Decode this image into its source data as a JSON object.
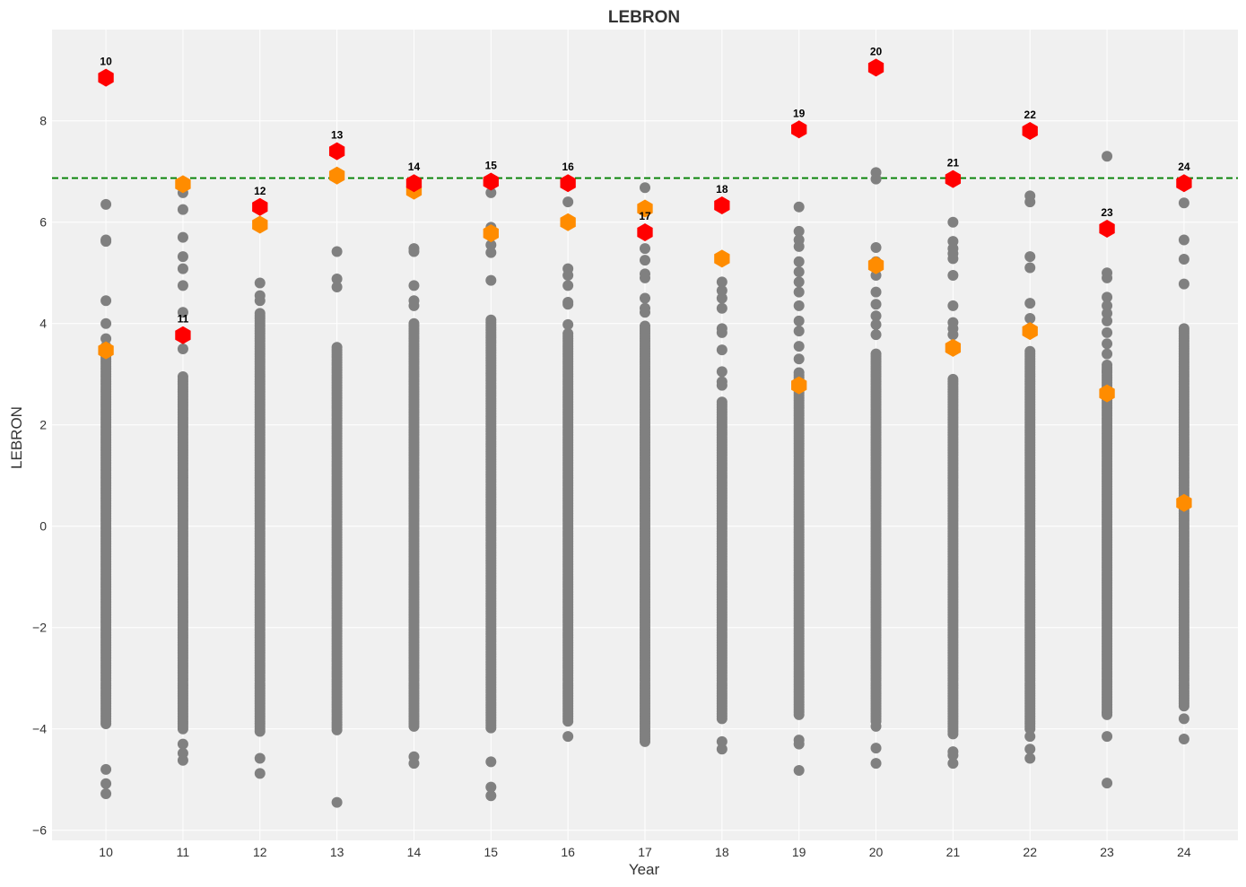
{
  "chart_data": {
    "type": "scatter",
    "title": "LEBRON",
    "xlabel": "Year",
    "ylabel": "LEBRON",
    "xlim": [
      9.3,
      24.7
    ],
    "ylim": [
      -6.2,
      9.8
    ],
    "x_ticks": [
      10,
      11,
      12,
      13,
      14,
      15,
      16,
      17,
      18,
      19,
      20,
      21,
      22,
      23,
      24
    ],
    "y_ticks": [
      -6,
      -4,
      -2,
      0,
      2,
      4,
      6,
      8
    ],
    "grid": true,
    "reference_line": {
      "y": 6.87,
      "color": "#008000",
      "style": "dashed"
    },
    "colors": {
      "background": "#f0f0f0",
      "grid": "#ffffff",
      "others": "#808080",
      "second": "#ff8c00",
      "leader": "#ff0000",
      "reference": "#008000"
    },
    "series": [
      {
        "marker": "circle",
        "color": "#808080",
        "points_by_year": [
          {
            "year": 10,
            "outliers": [
              6.35,
              5.65,
              5.62,
              4.45,
              4.0,
              3.7,
              3.55,
              -4.8,
              -5.08,
              -5.28
            ],
            "range": [
              -3.9,
              3.4
            ]
          },
          {
            "year": 11,
            "outliers": [
              6.58,
              6.25,
              5.7,
              5.32,
              5.08,
              4.75,
              4.22,
              3.5,
              -4.3,
              -4.48,
              -4.62
            ],
            "range": [
              -4.0,
              2.95
            ]
          },
          {
            "year": 12,
            "outliers": [
              4.8,
              4.55,
              4.45,
              -4.58,
              -4.88
            ],
            "range": [
              -4.05,
              4.22
            ]
          },
          {
            "year": 13,
            "outliers": [
              5.42,
              4.88,
              4.72,
              -5.45
            ],
            "range": [
              -4.02,
              3.55
            ]
          },
          {
            "year": 14,
            "outliers": [
              5.48,
              5.42,
              4.75,
              4.45,
              4.35,
              -4.55,
              -4.68
            ],
            "range": [
              -3.95,
              4.02
            ]
          },
          {
            "year": 15,
            "outliers": [
              6.58,
              5.9,
              5.55,
              5.4,
              4.85,
              -4.65,
              -5.15,
              -5.32
            ],
            "range": [
              -3.98,
              4.08
            ]
          },
          {
            "year": 16,
            "outliers": [
              6.4,
              5.95,
              5.08,
              4.95,
              4.75,
              4.42,
              4.38,
              3.98,
              -4.15
            ],
            "range": [
              -3.85,
              3.8
            ]
          },
          {
            "year": 17,
            "outliers": [
              6.68,
              5.48,
              5.25,
              4.98,
              4.9,
              4.5,
              4.3,
              4.22
            ],
            "range": [
              -4.25,
              3.95
            ]
          },
          {
            "year": 18,
            "outliers": [
              4.82,
              4.65,
              4.5,
              4.3,
              3.9,
              3.82,
              3.48,
              3.05,
              2.85,
              2.78,
              -4.25,
              -4.4
            ],
            "range": [
              -3.8,
              2.45
            ]
          },
          {
            "year": 19,
            "outliers": [
              6.3,
              5.82,
              5.65,
              5.52,
              5.22,
              5.02,
              4.82,
              4.62,
              4.35,
              4.05,
              3.85,
              3.55,
              3.3,
              -4.22,
              -4.3,
              -4.82
            ],
            "range": [
              -3.72,
              3.05
            ]
          },
          {
            "year": 20,
            "outliers": [
              6.98,
              6.85,
              5.5,
              5.22,
              4.95,
              4.62,
              4.38,
              4.15,
              3.98,
              3.78,
              -3.95,
              -4.38,
              -4.68
            ],
            "range": [
              -3.85,
              3.4
            ]
          },
          {
            "year": 21,
            "outliers": [
              6.0,
              5.62,
              5.48,
              5.38,
              5.28,
              4.95,
              4.35,
              4.02,
              3.9,
              3.78,
              -4.45,
              -4.52,
              -4.68
            ],
            "range": [
              -4.1,
              2.9
            ]
          },
          {
            "year": 22,
            "outliers": [
              6.52,
              6.4,
              5.32,
              5.1,
              4.4,
              4.1,
              -4.15,
              -4.4,
              -4.58
            ],
            "range": [
              -4.0,
              3.45
            ]
          },
          {
            "year": 23,
            "outliers": [
              7.3,
              5.0,
              4.9,
              4.52,
              4.35,
              4.2,
              4.05,
              3.82,
              3.6,
              3.4,
              3.05,
              -3.68,
              -4.15,
              -5.07
            ],
            "range": [
              -3.72,
              3.22
            ]
          },
          {
            "year": 24,
            "outliers": [
              6.38,
              5.65,
              5.27,
              4.78,
              -3.8,
              -4.2
            ],
            "range": [
              -3.55,
              3.92
            ]
          }
        ]
      },
      {
        "marker": "hexagon",
        "color": "#ff8c00",
        "points": [
          [
            10,
            3.47
          ],
          [
            11,
            6.75
          ],
          [
            12,
            5.95
          ],
          [
            13,
            6.92
          ],
          [
            14,
            6.62
          ],
          [
            15,
            5.78
          ],
          [
            16,
            6.0
          ],
          [
            17,
            6.27
          ],
          [
            18,
            5.28
          ],
          [
            19,
            2.78
          ],
          [
            20,
            5.15
          ],
          [
            21,
            3.52
          ],
          [
            22,
            3.85
          ],
          [
            23,
            2.62
          ],
          [
            24,
            0.46
          ]
        ]
      },
      {
        "marker": "hexagon",
        "color": "#ff0000",
        "points": [
          [
            10,
            8.85,
            "10"
          ],
          [
            11,
            3.77,
            "11"
          ],
          [
            12,
            6.3,
            "12"
          ],
          [
            13,
            7.4,
            "13"
          ],
          [
            14,
            6.77,
            "14"
          ],
          [
            15,
            6.8,
            "15"
          ],
          [
            16,
            6.77,
            "16"
          ],
          [
            17,
            5.8,
            "17"
          ],
          [
            18,
            6.33,
            "18"
          ],
          [
            19,
            7.83,
            "19"
          ],
          [
            20,
            9.05,
            "20"
          ],
          [
            21,
            6.85,
            "21"
          ],
          [
            22,
            7.8,
            "22"
          ],
          [
            23,
            5.87,
            "23"
          ],
          [
            24,
            6.77,
            "24"
          ]
        ]
      }
    ]
  }
}
